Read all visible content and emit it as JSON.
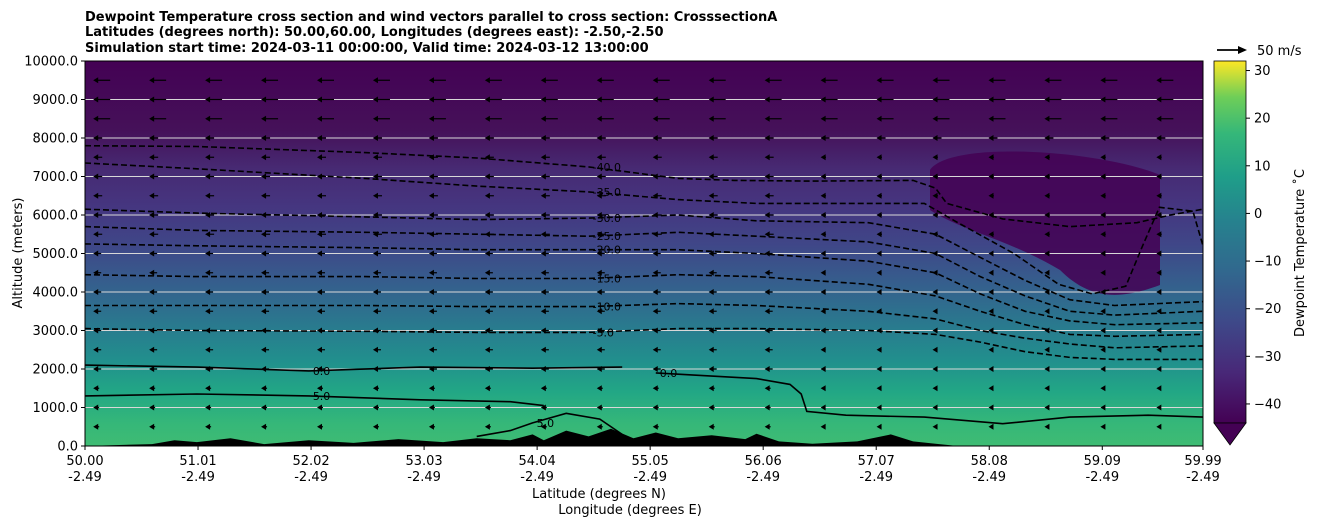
{
  "chart_data": {
    "type": "heatmap",
    "title_lines": [
      "Dewpoint Temperature cross section and wind vectors parallel to cross section: CrosssectionA",
      "Latitudes (degrees north): 50.00,60.00, Longitudes (degrees east): -2.50,-2.50",
      "Simulation start time: 2024-03-11 00:00:00, Valid time: 2024-03-12 13:00:00"
    ],
    "xlabel_lines": [
      "Latitude (degrees N)",
      "Longitude (degrees E)"
    ],
    "ylabel": "Altitude (meters)",
    "x_range": [
      50.0,
      59.99
    ],
    "y_range": [
      0,
      10000
    ],
    "x_ticks": [
      {
        "lat": 50.0,
        "lat_label": "50.00",
        "lon_label": "-2.49"
      },
      {
        "lat": 51.01,
        "lat_label": "51.01",
        "lon_label": "-2.49"
      },
      {
        "lat": 52.02,
        "lat_label": "52.02",
        "lon_label": "-2.49"
      },
      {
        "lat": 53.03,
        "lat_label": "53.03",
        "lon_label": "-2.49"
      },
      {
        "lat": 54.04,
        "lat_label": "54.04",
        "lon_label": "-2.49"
      },
      {
        "lat": 55.05,
        "lat_label": "55.05",
        "lon_label": "-2.49"
      },
      {
        "lat": 56.06,
        "lat_label": "56.06",
        "lon_label": "-2.49"
      },
      {
        "lat": 57.07,
        "lat_label": "57.07",
        "lon_label": "-2.49"
      },
      {
        "lat": 58.08,
        "lat_label": "58.08",
        "lon_label": "-2.49"
      },
      {
        "lat": 59.09,
        "lat_label": "59.09",
        "lon_label": "-2.49"
      },
      {
        "lat": 59.99,
        "lat_label": "59.99",
        "lon_label": "-2.49"
      }
    ],
    "y_ticks": [
      {
        "value": 0,
        "label": "0.0"
      },
      {
        "value": 1000,
        "label": "1000.0"
      },
      {
        "value": 2000,
        "label": "2000.0"
      },
      {
        "value": 3000,
        "label": "3000.0"
      },
      {
        "value": 4000,
        "label": "4000.0"
      },
      {
        "value": 5000,
        "label": "5000.0"
      },
      {
        "value": 6000,
        "label": "6000.0"
      },
      {
        "value": 7000,
        "label": "7000.0"
      },
      {
        "value": 8000,
        "label": "8000.0"
      },
      {
        "value": 9000,
        "label": "9000.0"
      },
      {
        "value": 10000,
        "label": "10000.0"
      }
    ],
    "grid": "horizontal",
    "colormap": "viridis",
    "colorbar": {
      "label": "Dewpoint Temperature ˚C",
      "range": [
        -44,
        32
      ],
      "extend": "min",
      "ticks": [
        {
          "value": 30,
          "label": "30"
        },
        {
          "value": 20,
          "label": "20"
        },
        {
          "value": 10,
          "label": "10"
        },
        {
          "value": 0,
          "label": "0"
        },
        {
          "value": -10,
          "label": "−10"
        },
        {
          "value": -20,
          "label": "−20"
        },
        {
          "value": -30,
          "label": "−30"
        },
        {
          "value": -40,
          "label": "−40"
        }
      ]
    },
    "wind_reference": {
      "label": "50 m/s"
    },
    "contours": [
      {
        "level": -40,
        "label": "-40.0",
        "style": "dashed",
        "points": [
          [
            50.0,
            7800
          ],
          [
            51.0,
            7780
          ],
          [
            52.5,
            7620
          ],
          [
            53.5,
            7480
          ],
          [
            54.5,
            7250
          ],
          [
            55.3,
            6950
          ],
          [
            55.8,
            6900
          ],
          [
            56.5,
            6880
          ],
          [
            57.4,
            6900
          ],
          [
            57.6,
            6700
          ],
          [
            57.7,
            6300
          ],
          [
            58.2,
            5900
          ],
          [
            58.8,
            5700
          ],
          [
            59.4,
            5800
          ],
          [
            59.7,
            6000
          ],
          [
            59.99,
            6150
          ]
        ]
      },
      {
        "level": -35,
        "label": "-35.0",
        "style": "dashed",
        "points": [
          [
            50.0,
            7350
          ],
          [
            51.0,
            7200
          ],
          [
            52.5,
            6950
          ],
          [
            53.5,
            6750
          ],
          [
            54.5,
            6600
          ],
          [
            55.3,
            6400
          ],
          [
            56.0,
            6300
          ],
          [
            57.0,
            6300
          ],
          [
            57.5,
            6300
          ],
          [
            57.8,
            5800
          ],
          [
            58.3,
            5000
          ],
          [
            58.7,
            4200
          ],
          [
            59.0,
            3950
          ],
          [
            59.3,
            4150
          ],
          [
            59.45,
            5200
          ],
          [
            59.6,
            6200
          ],
          [
            59.9,
            6100
          ],
          [
            59.99,
            5200
          ]
        ]
      },
      {
        "level": -30,
        "label": "-30.0",
        "style": "dashed",
        "points": [
          [
            50.0,
            6150
          ],
          [
            51.0,
            6050
          ],
          [
            52.5,
            5950
          ],
          [
            53.5,
            5880
          ],
          [
            54.5,
            5920
          ],
          [
            55.3,
            6000
          ],
          [
            56.0,
            5850
          ],
          [
            57.0,
            5800
          ],
          [
            57.6,
            5500
          ],
          [
            58.0,
            4900
          ],
          [
            58.4,
            4300
          ],
          [
            58.8,
            3800
          ],
          [
            59.2,
            3650
          ],
          [
            59.99,
            3750
          ]
        ]
      },
      {
        "level": -25,
        "label": "-25.0",
        "style": "dashed",
        "points": [
          [
            50.0,
            5700
          ],
          [
            51.0,
            5600
          ],
          [
            52.5,
            5550
          ],
          [
            53.5,
            5500
          ],
          [
            54.5,
            5450
          ],
          [
            55.3,
            5550
          ],
          [
            56.0,
            5450
          ],
          [
            57.0,
            5300
          ],
          [
            57.6,
            5000
          ],
          [
            58.0,
            4400
          ],
          [
            58.4,
            3900
          ],
          [
            58.8,
            3500
          ],
          [
            59.2,
            3400
          ],
          [
            59.99,
            3500
          ]
        ]
      },
      {
        "level": -20,
        "label": "-20.0",
        "style": "dashed",
        "points": [
          [
            50.0,
            5250
          ],
          [
            51.0,
            5200
          ],
          [
            52.5,
            5150
          ],
          [
            53.5,
            5100
          ],
          [
            54.5,
            5100
          ],
          [
            55.3,
            5100
          ],
          [
            56.0,
            5000
          ],
          [
            57.0,
            4800
          ],
          [
            57.6,
            4500
          ],
          [
            58.0,
            3950
          ],
          [
            58.4,
            3500
          ],
          [
            58.8,
            3250
          ],
          [
            59.2,
            3150
          ],
          [
            59.99,
            3200
          ]
        ]
      },
      {
        "level": -15,
        "label": "-15.0",
        "style": "dashed",
        "points": [
          [
            50.0,
            4450
          ],
          [
            51.0,
            4400
          ],
          [
            52.5,
            4400
          ],
          [
            53.5,
            4350
          ],
          [
            54.5,
            4350
          ],
          [
            55.3,
            4450
          ],
          [
            56.0,
            4400
          ],
          [
            57.0,
            4200
          ],
          [
            57.6,
            3900
          ],
          [
            58.0,
            3500
          ],
          [
            58.4,
            3150
          ],
          [
            58.8,
            2900
          ],
          [
            59.2,
            2850
          ],
          [
            59.99,
            2900
          ]
        ]
      },
      {
        "level": -10,
        "label": "-10.0",
        "style": "dashed",
        "points": [
          [
            50.0,
            3650
          ],
          [
            51.0,
            3650
          ],
          [
            52.5,
            3650
          ],
          [
            53.5,
            3620
          ],
          [
            54.5,
            3620
          ],
          [
            55.3,
            3700
          ],
          [
            56.0,
            3650
          ],
          [
            57.0,
            3500
          ],
          [
            57.6,
            3300
          ],
          [
            58.0,
            3000
          ],
          [
            58.4,
            2800
          ],
          [
            58.8,
            2650
          ],
          [
            59.2,
            2550
          ],
          [
            59.99,
            2600
          ]
        ]
      },
      {
        "level": -5,
        "label": "-5.0",
        "style": "dashed",
        "points": [
          [
            50.0,
            3050
          ],
          [
            51.0,
            3000
          ],
          [
            52.5,
            2980
          ],
          [
            53.5,
            2950
          ],
          [
            54.5,
            2950
          ],
          [
            55.3,
            3050
          ],
          [
            56.0,
            3050
          ],
          [
            57.0,
            3000
          ],
          [
            57.6,
            2900
          ],
          [
            58.0,
            2700
          ],
          [
            58.4,
            2450
          ],
          [
            58.8,
            2300
          ],
          [
            59.2,
            2250
          ],
          [
            59.99,
            2250
          ]
        ]
      },
      {
        "level": 0,
        "label": "0.0",
        "style": "solid",
        "points": [
          [
            50.0,
            2100
          ],
          [
            51.0,
            2050
          ],
          [
            52.0,
            1950
          ],
          [
            53.0,
            2050
          ],
          [
            54.0,
            2020
          ],
          [
            54.8,
            2050
          ]
        ]
      },
      {
        "level": 0,
        "label": "0.0",
        "style": "solid",
        "points": [
          [
            55.1,
            1900
          ],
          [
            56.0,
            1750
          ],
          [
            56.3,
            1600
          ],
          [
            56.4,
            1350
          ],
          [
            56.45,
            900
          ],
          [
            56.8,
            800
          ],
          [
            57.5,
            750
          ],
          [
            58.2,
            580
          ],
          [
            58.8,
            750
          ],
          [
            59.5,
            800
          ],
          [
            59.99,
            750
          ]
        ]
      },
      {
        "level": 5,
        "label": "5.0",
        "style": "solid",
        "points": [
          [
            50.0,
            1300
          ],
          [
            51.0,
            1350
          ],
          [
            52.0,
            1300
          ],
          [
            53.0,
            1200
          ],
          [
            53.8,
            1150
          ],
          [
            54.1,
            1050
          ]
        ]
      },
      {
        "level": 5,
        "label": "5.0",
        "style": "solid",
        "points": [
          [
            53.5,
            250
          ],
          [
            53.8,
            400
          ],
          [
            54.0,
            600
          ],
          [
            54.3,
            850
          ],
          [
            54.6,
            700
          ],
          [
            54.8,
            300
          ]
        ]
      }
    ],
    "terrain": {
      "points": [
        [
          50.0,
          0
        ],
        [
          50.6,
          50
        ],
        [
          50.8,
          150
        ],
        [
          51.0,
          100
        ],
        [
          51.3,
          200
        ],
        [
          51.6,
          50
        ],
        [
          52.0,
          150
        ],
        [
          52.4,
          80
        ],
        [
          52.8,
          180
        ],
        [
          53.2,
          100
        ],
        [
          53.5,
          200
        ],
        [
          53.8,
          150
        ],
        [
          54.0,
          300
        ],
        [
          54.1,
          150
        ],
        [
          54.3,
          400
        ],
        [
          54.5,
          250
        ],
        [
          54.7,
          450
        ],
        [
          54.9,
          200
        ],
        [
          55.1,
          350
        ],
        [
          55.3,
          200
        ],
        [
          55.6,
          280
        ],
        [
          55.9,
          180
        ],
        [
          56.0,
          320
        ],
        [
          56.2,
          120
        ],
        [
          56.5,
          60
        ],
        [
          56.9,
          120
        ],
        [
          57.2,
          300
        ],
        [
          57.4,
          120
        ],
        [
          57.6,
          60
        ],
        [
          57.8,
          0
        ],
        [
          59.99,
          0
        ]
      ]
    }
  }
}
